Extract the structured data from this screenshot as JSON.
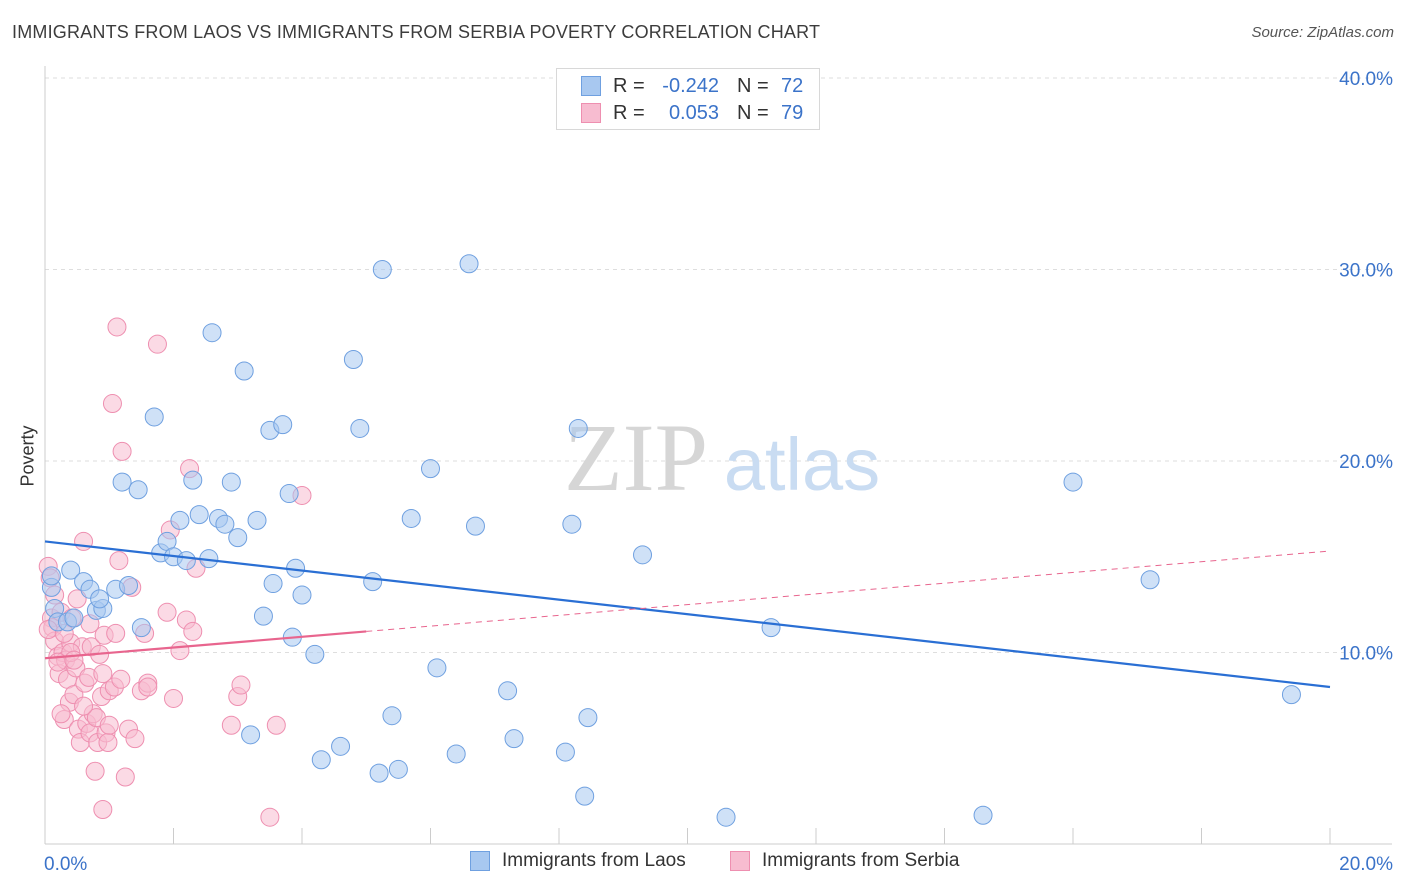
{
  "header": {
    "title": "IMMIGRANTS FROM LAOS VS IMMIGRANTS FROM SERBIA POVERTY CORRELATION CHART",
    "source": "Source: ZipAtlas.com"
  },
  "watermark": {
    "zip": "ZIP",
    "atlas": "atlas"
  },
  "legend": {
    "rows": [
      {
        "r_label": "R =",
        "r_value": "-0.242",
        "n_label": "N =",
        "n_value": "72"
      },
      {
        "r_label": "R =",
        "r_value": "0.053",
        "n_label": "N =",
        "n_value": "79"
      }
    ]
  },
  "colors": {
    "laos_fill": "#a8c8f0",
    "laos_stroke": "#6fa0e0",
    "laos_line": "#2a6fd4",
    "serbia_fill": "#f7bcd0",
    "serbia_stroke": "#ee8fb0",
    "serbia_line": "#e8658e",
    "tick_label": "#3b73c9"
  },
  "chart_data": {
    "type": "scatter",
    "title": "IMMIGRANTS FROM LAOS VS IMMIGRANTS FROM SERBIA POVERTY CORRELATION CHART",
    "xlabel": "",
    "ylabel": "Poverty",
    "xlim": [
      0,
      20
    ],
    "ylim": [
      0,
      40
    ],
    "x_tick_labels": [
      "0.0%",
      "20.0%"
    ],
    "y_ticks": [
      10,
      20,
      30,
      40
    ],
    "y_tick_labels": [
      "10.0%",
      "20.0%",
      "30.0%",
      "40.0%"
    ],
    "grid": true,
    "legend_position": "top-center",
    "series": [
      {
        "name": "Immigrants from Laos",
        "r": -0.242,
        "n": 72,
        "trend": {
          "x": [
            0,
            20
          ],
          "y": [
            15.8,
            8.2
          ],
          "dashed_extension": false
        },
        "points": [
          [
            0.1,
            13.4
          ],
          [
            0.15,
            12.3
          ],
          [
            0.2,
            11.6
          ],
          [
            0.35,
            11.6
          ],
          [
            0.45,
            11.8
          ],
          [
            0.4,
            14.3
          ],
          [
            0.6,
            13.7
          ],
          [
            0.7,
            13.3
          ],
          [
            0.8,
            12.2
          ],
          [
            0.9,
            12.3
          ],
          [
            0.85,
            12.8
          ],
          [
            1.1,
            13.3
          ],
          [
            1.3,
            13.5
          ],
          [
            1.2,
            18.9
          ],
          [
            1.45,
            18.5
          ],
          [
            1.5,
            11.3
          ],
          [
            1.7,
            22.3
          ],
          [
            1.8,
            15.2
          ],
          [
            1.9,
            15.8
          ],
          [
            2.0,
            15.0
          ],
          [
            2.1,
            16.9
          ],
          [
            2.2,
            14.8
          ],
          [
            2.3,
            19.0
          ],
          [
            2.4,
            17.2
          ],
          [
            2.55,
            14.9
          ],
          [
            2.6,
            26.7
          ],
          [
            2.7,
            17.0
          ],
          [
            2.8,
            16.7
          ],
          [
            2.9,
            18.9
          ],
          [
            3.0,
            16.0
          ],
          [
            3.1,
            24.7
          ],
          [
            3.2,
            5.7
          ],
          [
            3.3,
            16.9
          ],
          [
            3.4,
            11.9
          ],
          [
            3.5,
            21.6
          ],
          [
            3.55,
            13.6
          ],
          [
            3.7,
            21.9
          ],
          [
            3.8,
            18.3
          ],
          [
            3.85,
            10.8
          ],
          [
            3.9,
            14.4
          ],
          [
            4.0,
            13.0
          ],
          [
            4.2,
            9.9
          ],
          [
            4.3,
            4.4
          ],
          [
            4.6,
            5.1
          ],
          [
            4.8,
            25.3
          ],
          [
            4.9,
            21.7
          ],
          [
            5.1,
            13.7
          ],
          [
            5.2,
            3.7
          ],
          [
            5.25,
            30.0
          ],
          [
            5.4,
            6.7
          ],
          [
            5.5,
            3.9
          ],
          [
            5.7,
            17.0
          ],
          [
            6.0,
            19.6
          ],
          [
            6.1,
            9.2
          ],
          [
            6.4,
            4.7
          ],
          [
            6.6,
            30.3
          ],
          [
            6.7,
            16.6
          ],
          [
            7.2,
            8.0
          ],
          [
            7.3,
            5.5
          ],
          [
            8.1,
            4.8
          ],
          [
            8.2,
            16.7
          ],
          [
            8.3,
            21.7
          ],
          [
            8.4,
            2.5
          ],
          [
            8.45,
            6.6
          ],
          [
            9.3,
            15.1
          ],
          [
            10.6,
            1.4
          ],
          [
            11.3,
            11.3
          ],
          [
            14.6,
            1.5
          ],
          [
            16.0,
            18.9
          ],
          [
            17.2,
            13.8
          ],
          [
            19.4,
            7.8
          ],
          [
            0.1,
            14.0
          ]
        ]
      },
      {
        "name": "Immigrants from Serbia",
        "r": 0.053,
        "n": 79,
        "trend": {
          "x": [
            0,
            20
          ],
          "y": [
            9.7,
            15.3
          ],
          "solid_until_x": 5.0,
          "dashed_extension": true
        },
        "points": [
          [
            0.05,
            14.5
          ],
          [
            0.08,
            13.9
          ],
          [
            0.1,
            11.8
          ],
          [
            0.12,
            11.3
          ],
          [
            0.15,
            10.6
          ],
          [
            0.2,
            9.8
          ],
          [
            0.22,
            8.9
          ],
          [
            0.25,
            12.1
          ],
          [
            0.28,
            10.0
          ],
          [
            0.3,
            6.5
          ],
          [
            0.32,
            9.6
          ],
          [
            0.35,
            8.6
          ],
          [
            0.38,
            7.4
          ],
          [
            0.4,
            10.5
          ],
          [
            0.42,
            11.8
          ],
          [
            0.45,
            7.8
          ],
          [
            0.48,
            9.2
          ],
          [
            0.5,
            12.8
          ],
          [
            0.52,
            6.0
          ],
          [
            0.55,
            5.3
          ],
          [
            0.58,
            10.3
          ],
          [
            0.6,
            15.8
          ],
          [
            0.62,
            8.4
          ],
          [
            0.65,
            6.3
          ],
          [
            0.68,
            8.7
          ],
          [
            0.7,
            5.8
          ],
          [
            0.72,
            10.3
          ],
          [
            0.75,
            6.8
          ],
          [
            0.78,
            3.8
          ],
          [
            0.8,
            6.6
          ],
          [
            0.82,
            5.3
          ],
          [
            0.85,
            9.9
          ],
          [
            0.88,
            7.7
          ],
          [
            0.9,
            1.8
          ],
          [
            0.92,
            10.9
          ],
          [
            0.95,
            5.8
          ],
          [
            0.98,
            5.3
          ],
          [
            1.0,
            8.0
          ],
          [
            1.05,
            23.0
          ],
          [
            1.08,
            8.2
          ],
          [
            1.1,
            11.0
          ],
          [
            1.12,
            27.0
          ],
          [
            1.15,
            14.8
          ],
          [
            1.18,
            8.6
          ],
          [
            1.2,
            20.5
          ],
          [
            1.25,
            3.5
          ],
          [
            1.3,
            6.0
          ],
          [
            1.35,
            13.4
          ],
          [
            1.4,
            5.5
          ],
          [
            1.5,
            8.0
          ],
          [
            1.55,
            11.0
          ],
          [
            1.6,
            8.4
          ],
          [
            1.75,
            26.1
          ],
          [
            1.9,
            12.1
          ],
          [
            1.95,
            16.4
          ],
          [
            2.0,
            7.6
          ],
          [
            2.1,
            10.1
          ],
          [
            2.2,
            11.7
          ],
          [
            2.25,
            19.6
          ],
          [
            2.3,
            11.1
          ],
          [
            2.35,
            14.4
          ],
          [
            2.9,
            6.2
          ],
          [
            3.0,
            7.7
          ],
          [
            3.05,
            8.3
          ],
          [
            3.6,
            6.2
          ],
          [
            3.5,
            1.4
          ],
          [
            4.0,
            18.2
          ],
          [
            0.05,
            11.2
          ],
          [
            0.3,
            11.0
          ],
          [
            0.4,
            10.0
          ],
          [
            0.7,
            11.5
          ],
          [
            0.2,
            9.5
          ],
          [
            0.9,
            8.9
          ],
          [
            1.0,
            6.2
          ],
          [
            0.6,
            7.2
          ],
          [
            0.15,
            13.0
          ],
          [
            1.6,
            8.2
          ],
          [
            0.45,
            9.6
          ],
          [
            0.25,
            6.8
          ]
        ]
      }
    ]
  }
}
